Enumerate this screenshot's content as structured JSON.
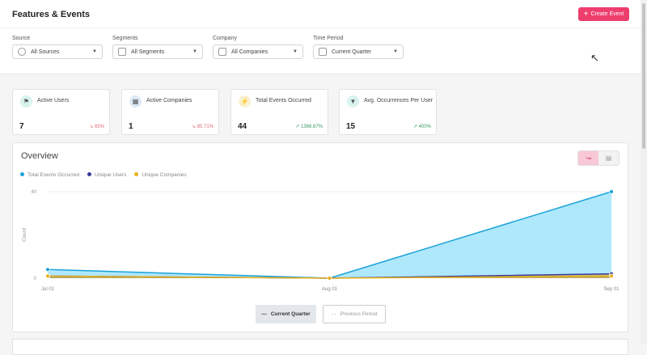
{
  "header": {
    "title": "Features & Events",
    "create_button": "Create Event"
  },
  "filters": [
    {
      "label": "Source",
      "value": "All Sources",
      "icon": "source-icon"
    },
    {
      "label": "Segments",
      "value": "All Segments",
      "icon": "users-icon"
    },
    {
      "label": "Company",
      "value": "All Companies",
      "icon": "building-icon"
    },
    {
      "label": "Time Period",
      "value": "Current Quarter",
      "icon": "calendar-icon"
    }
  ],
  "cards": [
    {
      "label": "Active Users",
      "value": "7",
      "trend": "65%",
      "direction": "down",
      "icon": "users-icon",
      "icon_bg": "#d8f3ee"
    },
    {
      "label": "Active Companies",
      "value": "1",
      "trend": "85.71%",
      "direction": "down",
      "icon": "building-icon",
      "icon_bg": "#dde9f5"
    },
    {
      "label": "Total Events Occurred",
      "value": "44",
      "trend": "1366.67%",
      "direction": "up",
      "icon": "bolt-icon",
      "icon_bg": "#fbf0d0"
    },
    {
      "label": "Avg. Occurrences Per User",
      "value": "15",
      "trend": "400%",
      "direction": "up",
      "icon": "filter-icon",
      "icon_bg": "#d8f3ee"
    }
  ],
  "overview": {
    "title": "Overview",
    "period_buttons": {
      "current": "Current Quarter",
      "previous": "Previous Period"
    }
  },
  "chart_data": {
    "type": "area",
    "ylabel": "Count",
    "categories": [
      "Jul 01",
      "Aug 01",
      "Sep 01"
    ],
    "yticks": [
      "0",
      "40"
    ],
    "ylim": [
      0,
      40
    ],
    "legend_position": "top-left",
    "series": [
      {
        "name": "Total Events Occurred",
        "values": [
          4,
          0,
          40
        ],
        "color": "#1aa3d9",
        "fill": "#a6e4fb"
      },
      {
        "name": "Unique Users",
        "values": [
          1,
          0,
          2
        ],
        "color": "#3c3c9c",
        "fill": "#c8b87a"
      },
      {
        "name": "Unique Companies",
        "values": [
          1,
          0,
          1
        ],
        "color": "#e8b21a",
        "fill": "#b8a860"
      }
    ]
  },
  "colors": {
    "accent": "#ee3e6e"
  }
}
